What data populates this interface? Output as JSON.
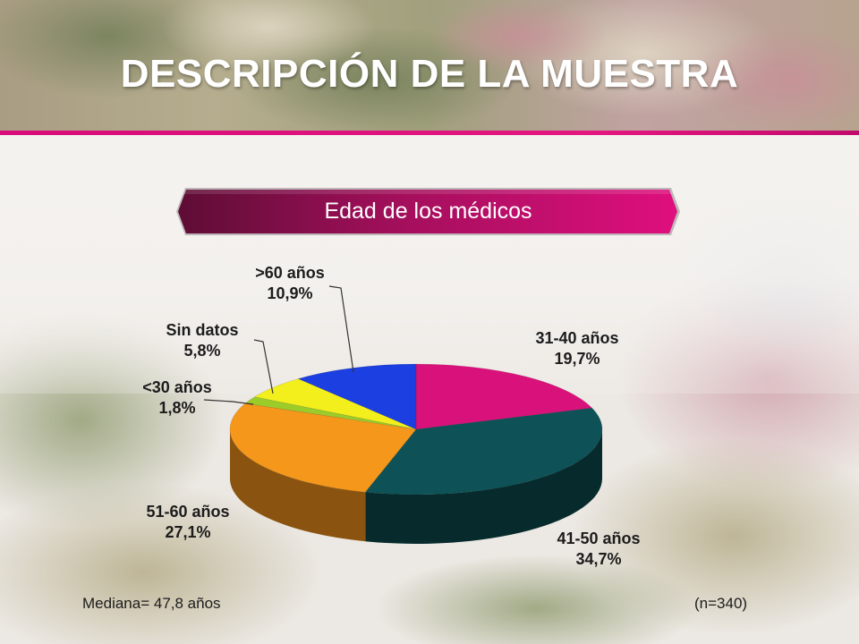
{
  "slide": {
    "title": "DESCRIPCIÓN DE LA MUESTRA",
    "subtitle": "Edad de los médicos"
  },
  "footer": {
    "median": "Mediana= 47,8 años",
    "sample": "(n=340)"
  },
  "colors": {
    "accent": "#d80c7a",
    "pill_dark": "#6b0f3c",
    "pill_light": "#d80c7a"
  },
  "chart_data": {
    "type": "pie",
    "title": "Edad de los médicos",
    "style": "3d",
    "categories": [
      "31-40 años",
      "41-50 años",
      "51-60 años",
      "<30 años",
      "Sin datos",
      ">60 años"
    ],
    "values": [
      19.7,
      34.7,
      27.1,
      1.8,
      5.8,
      10.9
    ],
    "value_labels": [
      "19,7%",
      "34,7%",
      "27,1%",
      "1,8%",
      "5,8%",
      "10,9%"
    ],
    "colors": [
      "#d8127a",
      "#0e5257",
      "#f4971a",
      "#9ccc2a",
      "#f3ef1d",
      "#1b3fe0"
    ],
    "side_colors": [
      "#8a0b4e",
      "#072b2d",
      "#8a5410",
      "#5c7a14",
      "#8f8b10",
      "#0e2386"
    ],
    "legend": "none"
  }
}
